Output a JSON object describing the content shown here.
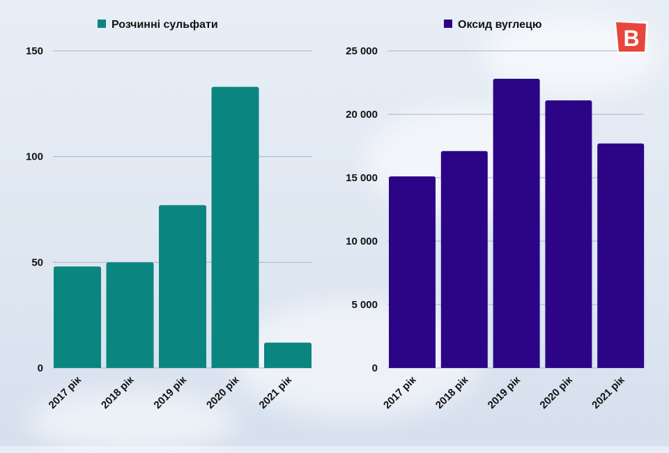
{
  "chart_data": [
    {
      "type": "bar",
      "categories": [
        "2017 рік",
        "2018 рік",
        "2019 рік",
        "2020 рік",
        "2021 рік"
      ],
      "series": [
        {
          "name": "Розчинні сульфати",
          "values": [
            48,
            50,
            77,
            133,
            12
          ]
        }
      ],
      "ylim": [
        0,
        150
      ],
      "yticks": [
        "0",
        "50",
        "100",
        "150"
      ],
      "ytick_values": [
        0,
        50,
        100,
        150
      ],
      "color": "#0b8580",
      "grid": true,
      "legend": "top"
    },
    {
      "type": "bar",
      "categories": [
        "2017 рік",
        "2018 рік",
        "2019 рік",
        "2020 рік",
        "2021 рік"
      ],
      "series": [
        {
          "name": "Оксид вуглецю",
          "values": [
            15100,
            17100,
            22800,
            21100,
            17700
          ]
        }
      ],
      "ylim": [
        0,
        25000
      ],
      "yticks": [
        "0",
        "5 000",
        "10 000",
        "15 000",
        "20 000",
        "25 000"
      ],
      "ytick_values": [
        0,
        5000,
        10000,
        15000,
        20000,
        25000
      ],
      "color": "#2c0587",
      "grid": true,
      "legend": "top"
    }
  ],
  "logo": {
    "letter": "B",
    "color": "#e8453c"
  }
}
